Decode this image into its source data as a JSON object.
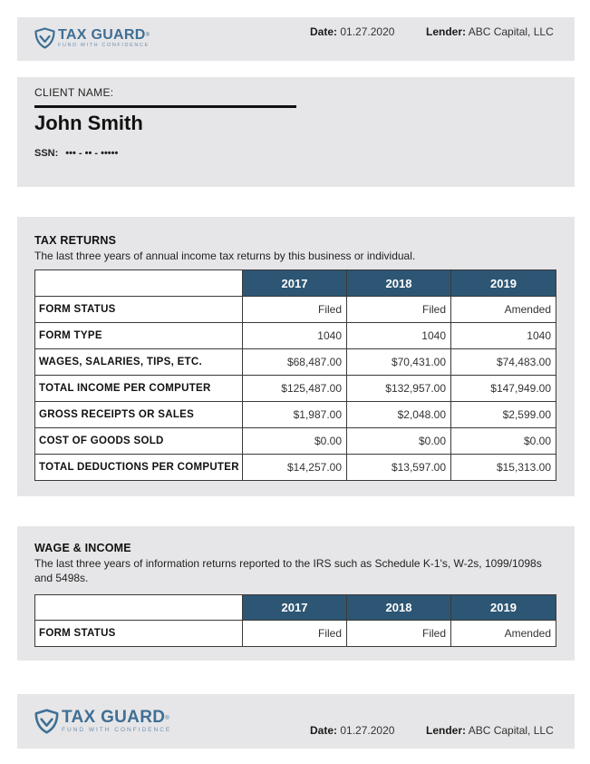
{
  "brand": {
    "name": "TAX GUARD",
    "trademark": "®",
    "tagline": "FUND WITH CONFIDENCE"
  },
  "header": {
    "date_label": "Date:",
    "date_value": "01.27.2020",
    "lender_label": "Lender:",
    "lender_value": "ABC Capital, LLC"
  },
  "client": {
    "label": "CLIENT NAME:",
    "name": "John Smith",
    "ssn_label": "SSN:",
    "ssn_value": "••• - •• - •••••"
  },
  "tax_returns": {
    "title": "TAX RETURNS",
    "description": "The last three years of annual income tax returns by this business or individual.",
    "years": [
      "2017",
      "2018",
      "2019"
    ],
    "rows": [
      {
        "label": "FORM STATUS",
        "values": [
          "Filed",
          "Filed",
          "Amended"
        ]
      },
      {
        "label": "FORM TYPE",
        "values": [
          "1040",
          "1040",
          "1040"
        ]
      },
      {
        "label": "WAGES, SALARIES, TIPS, ETC.",
        "values": [
          "$68,487.00",
          "$70,431.00",
          "$74,483.00"
        ]
      },
      {
        "label": "TOTAL INCOME PER COMPUTER",
        "values": [
          "$125,487.00",
          "$132,957.00",
          "$147,949.00"
        ]
      },
      {
        "label": "GROSS RECEIPTS OR SALES",
        "values": [
          "$1,987.00",
          "$2,048.00",
          "$2,599.00"
        ]
      },
      {
        "label": "COST OF GOODS SOLD",
        "values": [
          "$0.00",
          "$0.00",
          "$0.00"
        ]
      },
      {
        "label": "TOTAL DEDUCTIONS PER COMPUTER",
        "values": [
          "$14,257.00",
          "$13,597.00",
          "$15,313.00"
        ]
      }
    ]
  },
  "wage_income": {
    "title": "WAGE & INCOME",
    "description": "The last three years of information returns reported to the IRS such as Schedule K-1's, W-2s, 1099/1098s and 5498s.",
    "years": [
      "2017",
      "2018",
      "2019"
    ],
    "rows": [
      {
        "label": "FORM STATUS",
        "values": [
          "Filed",
          "Filed",
          "Amended"
        ]
      }
    ]
  },
  "colors": {
    "brand_blue": "#3f6f95",
    "table_header": "#2d5674",
    "panel_gray": "#e6e6e8"
  }
}
